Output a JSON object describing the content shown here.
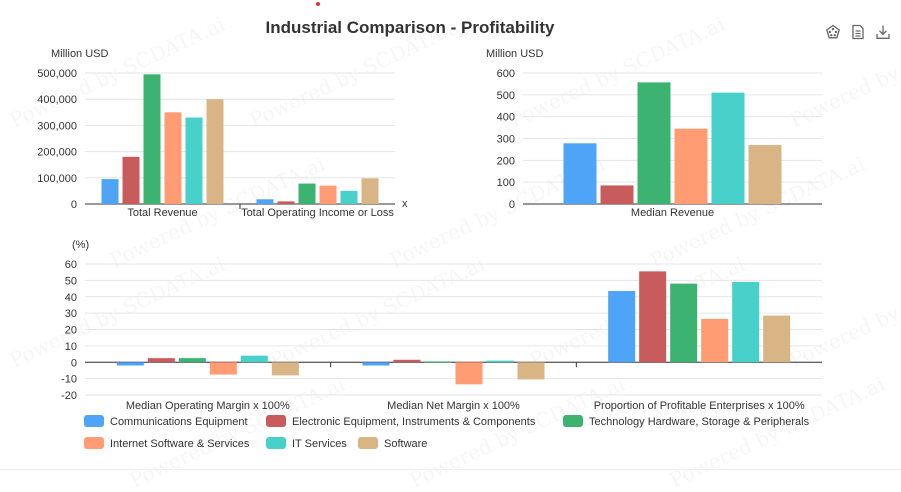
{
  "title": "Industrial Comparison - Profitability",
  "toolbox": {
    "icons": [
      "palette-icon",
      "data-view-icon",
      "download-icon"
    ]
  },
  "colors": {
    "series": [
      "#4ea4f6",
      "#c85c5c",
      "#3cb371",
      "#ff9c73",
      "#48d0cb",
      "#d9b485"
    ],
    "grid": "#e6e6e6",
    "axis": "#333333",
    "text": "#333333"
  },
  "chart_data": [
    {
      "type": "bar",
      "unit_label": "Million USD",
      "categories": [
        "Total Revenue",
        "Total Operating Income or Loss"
      ],
      "x_axis_name": "x",
      "yticks": [
        "0",
        "100,000",
        "200,000",
        "300,000",
        "400,000",
        "500,000"
      ],
      "ylim": [
        0,
        500000
      ],
      "series": [
        {
          "name": "Communications Equipment",
          "values": [
            95000,
            18000
          ]
        },
        {
          "name": "Electronic Equipment, Instruments & Components",
          "values": [
            180000,
            10000
          ]
        },
        {
          "name": "Technology Hardware, Storage & Peripherals",
          "values": [
            495000,
            78000
          ]
        },
        {
          "name": "Internet Software & Services",
          "values": [
            350000,
            70000
          ]
        },
        {
          "name": "IT Services",
          "values": [
            330000,
            50000
          ]
        },
        {
          "name": "Software",
          "values": [
            400000,
            98000
          ]
        }
      ]
    },
    {
      "type": "bar",
      "unit_label": "Million USD",
      "categories": [
        "Median Revenue"
      ],
      "yticks": [
        "0",
        "100",
        "200",
        "300",
        "400",
        "500",
        "600"
      ],
      "ylim": [
        0,
        600
      ],
      "series": [
        {
          "name": "Communications Equipment",
          "values": [
            278
          ]
        },
        {
          "name": "Electronic Equipment, Instruments & Components",
          "values": [
            85
          ]
        },
        {
          "name": "Technology Hardware, Storage & Peripherals",
          "values": [
            557
          ]
        },
        {
          "name": "Internet Software & Services",
          "values": [
            345
          ]
        },
        {
          "name": "IT Services",
          "values": [
            510
          ]
        },
        {
          "name": "Software",
          "values": [
            270
          ]
        }
      ]
    },
    {
      "type": "bar",
      "unit_label": "(%)",
      "categories": [
        "Median Operating Margin x 100%",
        "Median Net Margin x 100%",
        "Proportion of Profitable Enterprises x 100%"
      ],
      "yticks": [
        "-20",
        "-10",
        "0",
        "10",
        "20",
        "30",
        "40",
        "50",
        "60"
      ],
      "ylim": [
        -20,
        60
      ],
      "series": [
        {
          "name": "Communications Equipment",
          "values": [
            -2,
            -2,
            43.5
          ]
        },
        {
          "name": "Electronic Equipment, Instruments & Components",
          "values": [
            2.5,
            1.5,
            55.5
          ]
        },
        {
          "name": "Technology Hardware, Storage & Peripherals",
          "values": [
            2.5,
            0.5,
            48
          ]
        },
        {
          "name": "Internet Software & Services",
          "values": [
            -7.5,
            -13.5,
            26.5
          ]
        },
        {
          "name": "IT Services",
          "values": [
            4,
            1,
            49
          ]
        },
        {
          "name": "Software",
          "values": [
            -8,
            -10.5,
            28.5
          ]
        }
      ]
    }
  ],
  "legend": [
    "Communications Equipment",
    "Electronic Equipment, Instruments & Components",
    "Technology Hardware, Storage & Peripherals",
    "Internet Software & Services",
    "IT Services",
    "Software"
  ],
  "watermark": "Powered by SCDATA.ai"
}
